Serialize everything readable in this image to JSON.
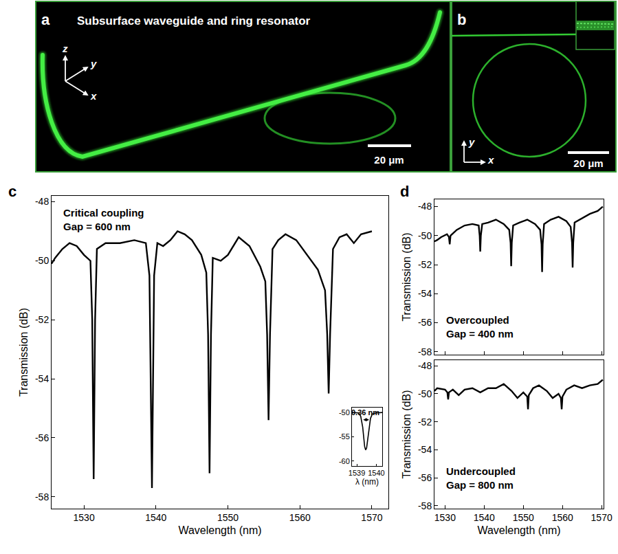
{
  "panels": [
    {
      "letter": "a",
      "title": "Subsurface waveguide and ring resonator",
      "axes": [
        "x",
        "y",
        "z"
      ],
      "scale_bar": "20 μm"
    },
    {
      "letter": "b",
      "axes": [
        "x",
        "y"
      ],
      "scale_bar": "20 μm"
    }
  ],
  "chart_data": [
    {
      "letter": "c",
      "type": "line",
      "x_label": "Wavelength (nm)",
      "y_label": "Transmission (dB)",
      "annotations": [
        "Critical coupling",
        "Gap = 600 nm"
      ],
      "x": [
        1525.5,
        1526,
        1527,
        1528,
        1529,
        1530,
        1530.9,
        1531.15,
        1531.35,
        1531.55,
        1531.8,
        1533,
        1535,
        1537,
        1538.6,
        1539.1,
        1539.45,
        1539.75,
        1540.2,
        1541,
        1542,
        1543,
        1544,
        1545,
        1546.3,
        1547.0,
        1547.25,
        1547.45,
        1547.65,
        1547.9,
        1549,
        1550,
        1551.5,
        1553,
        1554.5,
        1555.2,
        1555.45,
        1555.65,
        1555.85,
        1556.2,
        1557,
        1558,
        1559.5,
        1561,
        1562.5,
        1563.5,
        1563.8,
        1564.0,
        1564.2,
        1564.6,
        1565.5,
        1566.5,
        1567.5,
        1568.5,
        1570
      ],
      "values": [
        -50.1,
        -49.9,
        -49.6,
        -49.4,
        -49.5,
        -49.8,
        -50.0,
        -52,
        -57.4,
        -52,
        -49.6,
        -49.4,
        -49.4,
        -49.3,
        -49.4,
        -50.5,
        -57.7,
        -50.5,
        -49.4,
        -49.5,
        -49.3,
        -49.0,
        -49.1,
        -49.3,
        -49.8,
        -50.4,
        -52.5,
        -57.2,
        -52.5,
        -49.9,
        -50.0,
        -49.8,
        -49.2,
        -49.5,
        -50.2,
        -50.7,
        -52.5,
        -55.4,
        -52.5,
        -49.6,
        -49.3,
        -49.1,
        -49.3,
        -49.8,
        -50.3,
        -51.0,
        -52.5,
        -54.5,
        -52.5,
        -49.6,
        -49.2,
        -49.1,
        -49.4,
        -49.1,
        -49.0
      ],
      "color": "#000000",
      "xlim": [
        1525.5,
        1572.3
      ],
      "ylim": [
        -58.4,
        -47.8
      ],
      "xticks": [
        1530,
        1540,
        1550,
        1560,
        1570
      ],
      "yticks": [
        -58,
        -56,
        -54,
        -52,
        -50,
        -48
      ],
      "grid": false
    },
    {
      "type": "line",
      "x_label": "λ (nm)",
      "x": [
        1538.75,
        1539.0,
        1539.1,
        1539.2,
        1539.3,
        1539.4,
        1539.45,
        1539.5,
        1539.6,
        1539.7,
        1539.8,
        1540.0,
        1540.3
      ],
      "values": [
        -50.0,
        -50.0,
        -50.1,
        -50.8,
        -53.0,
        -57.0,
        -57.7,
        -57.3,
        -54.0,
        -51.2,
        -50.3,
        -50.1,
        -50.0
      ],
      "color": "#000000",
      "xlim": [
        1538.75,
        1540.3
      ],
      "ylim": [
        -61,
        -49
      ],
      "xticks": [
        1539,
        1540
      ],
      "yticks": [
        -60,
        -55,
        -50
      ],
      "fwhm": {
        "value": 0.36,
        "label": "0.36 nm",
        "x_start": 1539.27,
        "y": -51.5
      },
      "grid": false
    },
    {
      "letter": "d",
      "type": "line",
      "y_label": "Transmission (dB)",
      "annotations": [
        "Overcoupled",
        "Gap = 400 nm"
      ],
      "x": [
        1527.3,
        1528,
        1529,
        1530.5,
        1531.0,
        1531.2,
        1531.4,
        1533,
        1535,
        1537,
        1538.6,
        1538.85,
        1539.0,
        1539.15,
        1539.5,
        1541,
        1543,
        1545,
        1546.4,
        1546.75,
        1546.9,
        1547.05,
        1547.4,
        1549,
        1551,
        1553,
        1554.3,
        1554.65,
        1554.8,
        1554.95,
        1555.3,
        1557,
        1559,
        1561,
        1562.1,
        1562.45,
        1562.6,
        1562.75,
        1563.1,
        1565,
        1567,
        1569,
        1570.3
      ],
      "values": [
        -50.4,
        -50.3,
        -50.1,
        -49.9,
        -50.1,
        -50.6,
        -50.0,
        -49.6,
        -49.3,
        -49.2,
        -49.3,
        -50.0,
        -51.1,
        -50.0,
        -49.2,
        -49.1,
        -48.9,
        -49.2,
        -49.6,
        -50.5,
        -52.1,
        -50.5,
        -49.3,
        -49.1,
        -48.9,
        -49.2,
        -49.6,
        -50.6,
        -52.5,
        -50.6,
        -49.2,
        -48.9,
        -48.7,
        -49.0,
        -49.4,
        -50.5,
        -52.2,
        -50.5,
        -49.1,
        -48.8,
        -48.5,
        -48.3,
        -48.0
      ],
      "color": "#000000",
      "xlim": [
        1527.3,
        1570.5
      ],
      "ylim": [
        -58.2,
        -47.5
      ],
      "xticks": [
        1530,
        1540,
        1550,
        1560,
        1570
      ],
      "yticks": [
        -58,
        -56,
        -54,
        -52,
        -50,
        -48
      ],
      "tick_labels": "y",
      "grid": false
    },
    {
      "type": "line",
      "x_label": "Wavelength (nm)",
      "y_label": "Transmission (dB)",
      "annotations": [
        "Undercoupled",
        "Gap = 800 nm"
      ],
      "x": [
        1527.3,
        1528,
        1530,
        1530.6,
        1530.8,
        1531.0,
        1532,
        1533.5,
        1535,
        1537,
        1539,
        1541,
        1543,
        1545,
        1547,
        1548.5,
        1550,
        1551.0,
        1551.2,
        1551.4,
        1552.5,
        1554,
        1556,
        1557.5,
        1559,
        1559.6,
        1559.8,
        1560.0,
        1561,
        1563,
        1565,
        1567,
        1569,
        1570.3
      ],
      "values": [
        -49.8,
        -49.6,
        -49.7,
        -49.9,
        -50.4,
        -49.9,
        -49.7,
        -50.1,
        -49.7,
        -49.6,
        -49.9,
        -49.6,
        -49.6,
        -49.3,
        -49.8,
        -50.3,
        -49.9,
        -50.2,
        -51.1,
        -50.1,
        -49.6,
        -49.4,
        -49.8,
        -50.3,
        -50.0,
        -50.3,
        -51.1,
        -50.2,
        -49.7,
        -49.4,
        -49.6,
        -49.4,
        -49.3,
        -49.0
      ],
      "color": "#000000",
      "xlim": [
        1527.3,
        1570.5
      ],
      "ylim": [
        -58.2,
        -47.6
      ],
      "xticks": [
        1530,
        1540,
        1550,
        1560,
        1570
      ],
      "yticks": [
        -58,
        -56,
        -54,
        -52,
        -50,
        -48
      ],
      "grid": false
    }
  ]
}
